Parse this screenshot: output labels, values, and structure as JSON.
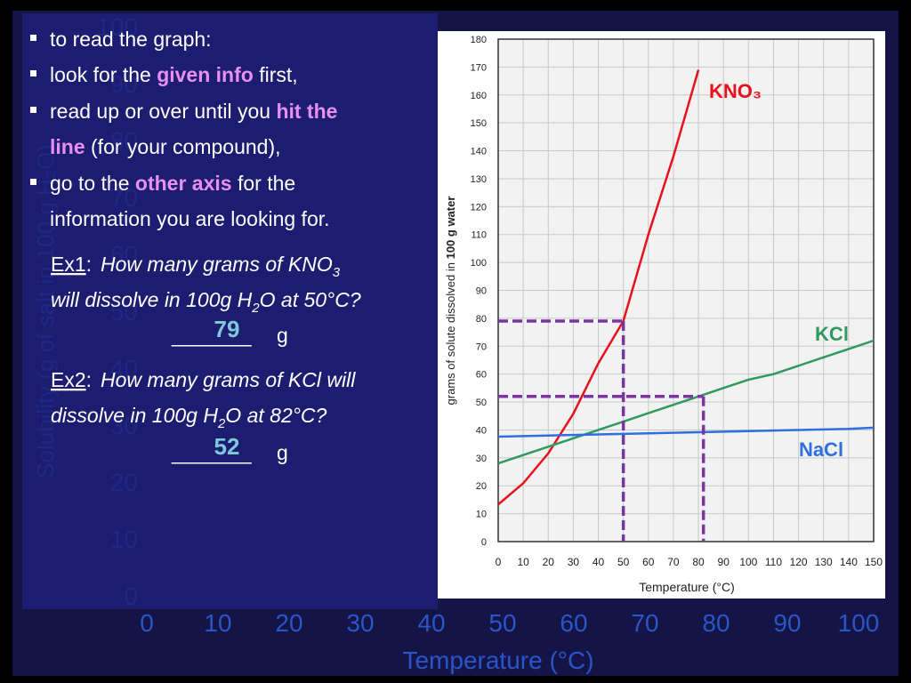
{
  "slide": {
    "bullets": [
      [
        [
          {
            "text": "to read the graph:"
          }
        ]
      ],
      [
        [
          {
            "text": "look for the "
          },
          {
            "text": "given info",
            "em": true
          },
          {
            "text": " first,"
          }
        ]
      ],
      [
        [
          {
            "text": "read up or over until you "
          },
          {
            "text": "hit the",
            "em": true
          }
        ],
        [
          {
            "text": "line",
            "em": true
          },
          {
            "text": " (for your compound),"
          }
        ]
      ],
      [
        [
          {
            "text": "go to the "
          },
          {
            "text": "other axis",
            "em": true
          },
          {
            "text": " for the"
          }
        ],
        [
          {
            "text": "information you are looking for."
          }
        ]
      ]
    ],
    "examples": [
      {
        "label": "Ex1",
        "sep": ":",
        "lines": [
          [
            {
              "text": "How many grams of KNO"
            },
            {
              "text": "3",
              "sub": true
            }
          ],
          [
            {
              "text": "will dissolve in 100g H"
            },
            {
              "text": "2",
              "sub": true
            },
            {
              "text": "O at 50°C?"
            }
          ]
        ],
        "blank": "_______",
        "answer": "79",
        "unit": "g"
      },
      {
        "label": "Ex2",
        "sep": ":",
        "lines": [
          [
            {
              "text": "How many grams of KCl will"
            }
          ],
          [
            {
              "text": "dissolve in 100g H"
            },
            {
              "text": "2",
              "sub": true
            },
            {
              "text": "O at 82°C?"
            }
          ]
        ],
        "blank": "_______",
        "answer": "52",
        "unit": "g"
      }
    ]
  },
  "chart_data": [
    {
      "type": "line",
      "xlabel": "Temperature (°C)",
      "ylabel_parts": [
        "grams of solute dissolved in ",
        "100 g water"
      ],
      "x": [
        0,
        10,
        20,
        30,
        40,
        50,
        60,
        70,
        80,
        90,
        100,
        110,
        120,
        130,
        140,
        150
      ],
      "series": [
        {
          "name": "KNO₃",
          "color": "#e8101a",
          "values": [
            13.3,
            20.9,
            31.6,
            45.8,
            63.9,
            79,
            110,
            138,
            169,
            null,
            null,
            null,
            null,
            null,
            null,
            null
          ]
        },
        {
          "name": "KCl",
          "color": "#2e9a5e",
          "values": [
            28,
            31,
            34,
            37,
            40,
            43,
            46,
            49,
            52,
            55,
            58,
            60,
            63,
            66,
            69,
            72
          ]
        },
        {
          "name": "NaCl",
          "color": "#2f6fe0",
          "values": [
            37.6,
            37.8,
            38,
            38.2,
            38.4,
            38.6,
            38.8,
            39,
            39.2,
            39.4,
            39.6,
            39.8,
            40,
            40.2,
            40.4,
            40.8
          ]
        }
      ],
      "guides": [
        {
          "x": 50,
          "y": 79
        },
        {
          "x": 82,
          "y": 52
        }
      ],
      "guide_color": "#7a35a0",
      "xlim": [
        0,
        150
      ],
      "ylim": [
        0,
        180
      ],
      "xticks": [
        0,
        10,
        20,
        30,
        40,
        50,
        60,
        70,
        80,
        90,
        100,
        110,
        120,
        130,
        140,
        150
      ],
      "yticks": [
        0,
        10,
        20,
        30,
        40,
        50,
        60,
        70,
        80,
        90,
        100,
        110,
        120,
        130,
        140,
        150,
        160,
        170,
        180
      ],
      "grid": true
    },
    {
      "type": "line",
      "xlabel": "Temperature (°C)",
      "ylabel": "Solubility (g of salt in 100 g H₂O)",
      "xlim": [
        0,
        100
      ],
      "ylim": [
        0,
        100
      ],
      "xticks": [
        0,
        10,
        20,
        30,
        40,
        50,
        60,
        70,
        80,
        90,
        100
      ],
      "yticks": [
        0,
        10,
        20,
        30,
        40,
        50,
        60,
        70,
        80,
        90,
        100
      ],
      "color": "#2a55c8"
    }
  ]
}
